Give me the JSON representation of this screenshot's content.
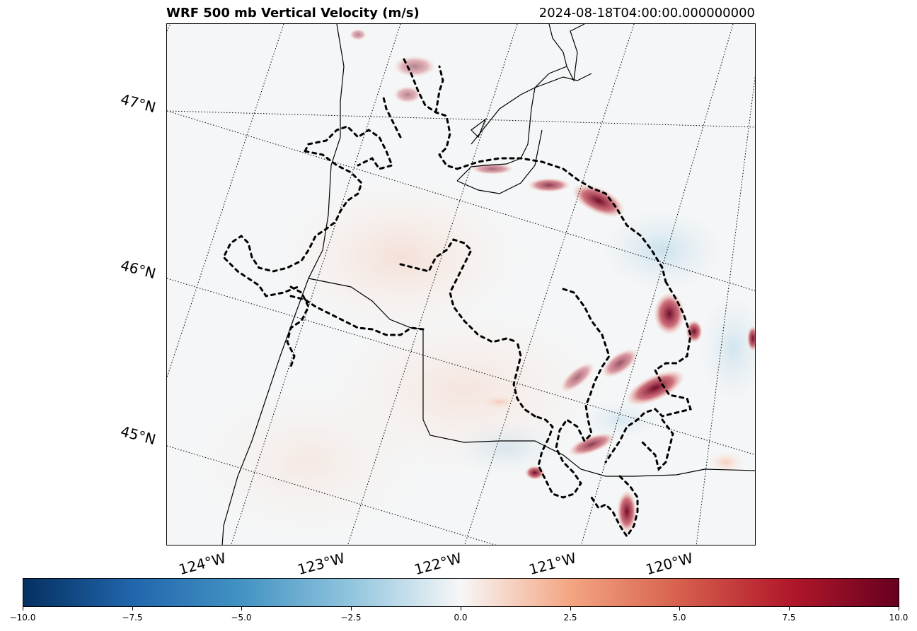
{
  "title": "WRF 500 mb Vertical Velocity (m/s)",
  "timestamp": "2024-08-18T04:00:00.000000000",
  "lat_labels": [
    "47°N",
    "46°N",
    "45°N"
  ],
  "lon_labels": [
    "124°W",
    "123°W",
    "122°W",
    "121°W",
    "120°W"
  ],
  "colorbar": {
    "ticks": [
      "−10.0",
      "−7.5",
      "−5.0",
      "−2.5",
      "0.0",
      "2.5",
      "5.0",
      "7.5",
      "10.0"
    ],
    "colors": [
      "#053061",
      "#2166ac",
      "#4393c3",
      "#92c5de",
      "#f7f7f7",
      "#f4a582",
      "#d6604d",
      "#b2182b",
      "#67001f"
    ]
  }
}
